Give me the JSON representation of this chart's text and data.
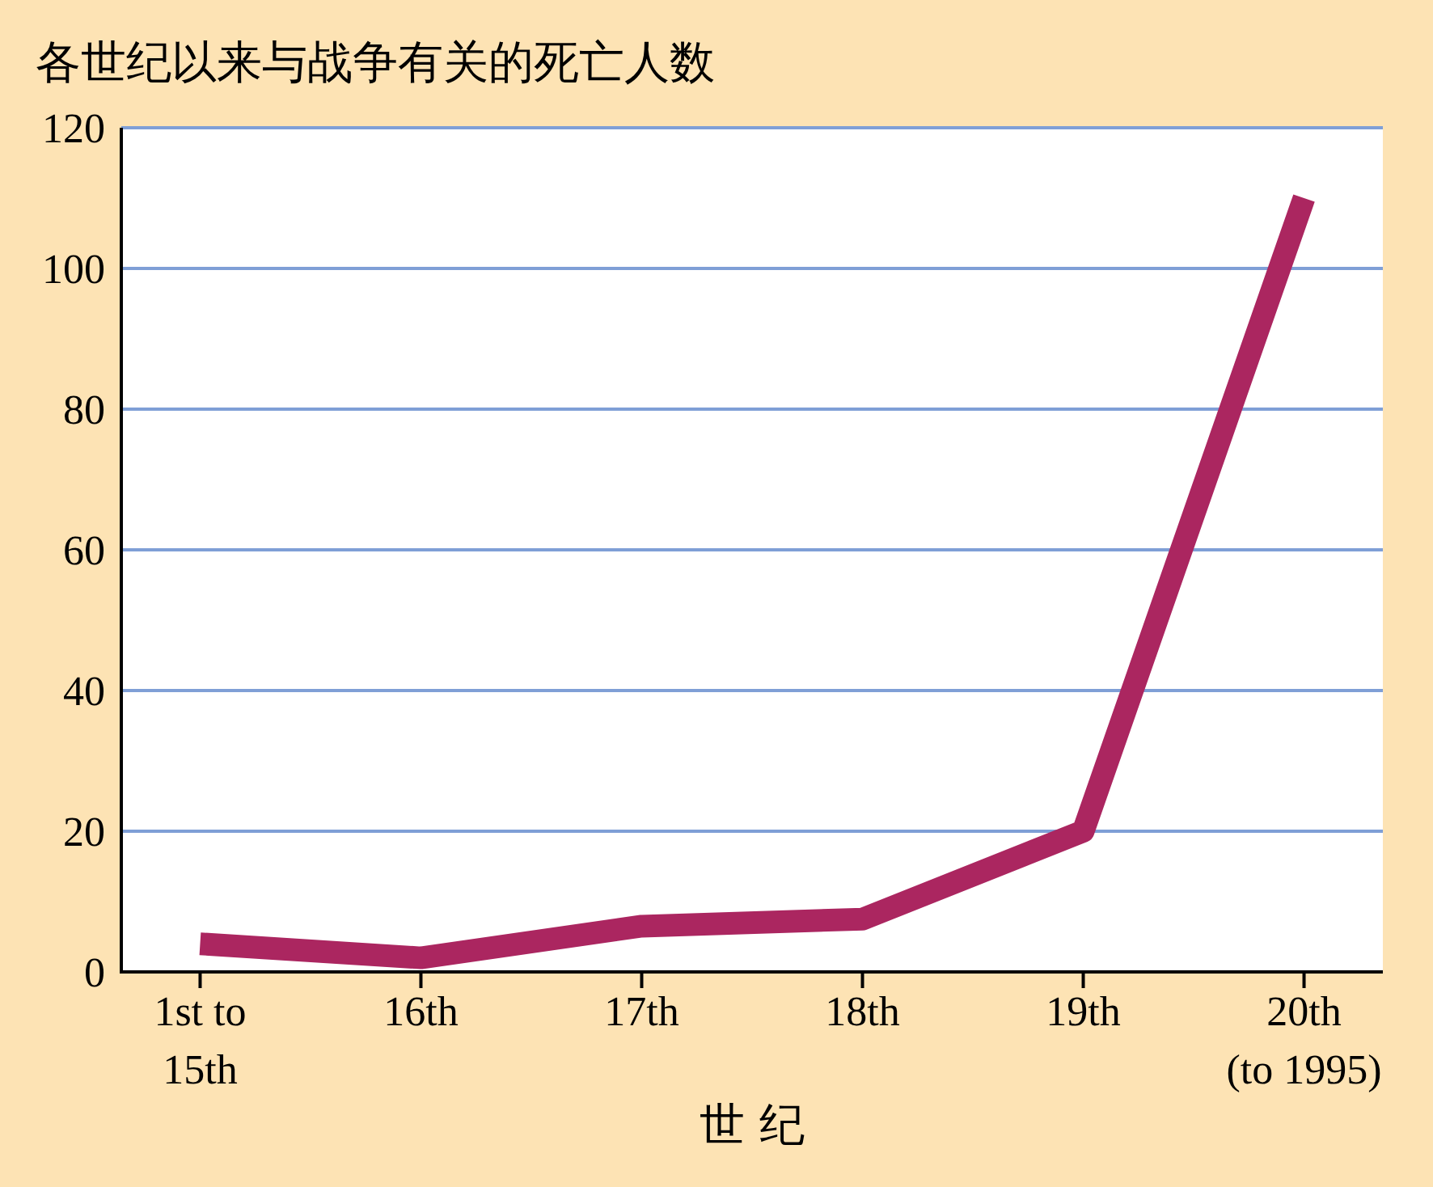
{
  "chart_data": {
    "type": "line",
    "title": "各世纪以来与战争有关的死亡人数",
    "xlabel": "世 纪",
    "categories": [
      "1st to\n15th",
      "16th",
      "17th",
      "18th",
      "19th",
      "20th\n(to 1995)"
    ],
    "series": [
      {
        "color": "#ab2660",
        "values": [
          4,
          2,
          6.5,
          7.5,
          20,
          110
        ]
      }
    ],
    "ylim": [
      0,
      120
    ],
    "yticks": [
      0,
      20,
      40,
      60,
      80,
      100,
      120
    ],
    "grid": "y",
    "marker": "none",
    "line_style": "solid"
  }
}
